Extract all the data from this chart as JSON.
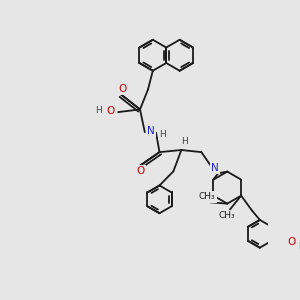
{
  "background_color": "#e6e6e6",
  "bond_color": "#1a1a1a",
  "bond_width": 1.3,
  "atom_colors": {
    "O": "#cc0000",
    "N": "#2222cc",
    "H": "#444444",
    "C": "#1a1a1a"
  },
  "font_size": 7.5,
  "font_size_small": 6.5,
  "xlim": [
    0,
    10
  ],
  "ylim": [
    0,
    10
  ]
}
